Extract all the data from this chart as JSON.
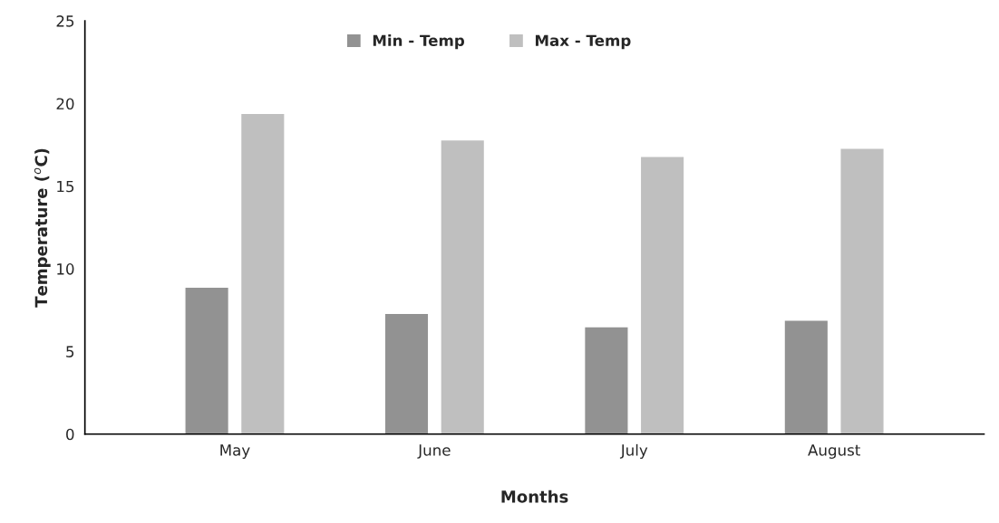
{
  "chart_data": {
    "type": "bar",
    "xlabel": "Months",
    "ylabel": "Temperature ($^{o}$C)",
    "categories": [
      "May",
      "June",
      "July",
      "August"
    ],
    "series": [
      {
        "name": "Min - Temp",
        "color": "#929292",
        "values": [
          8.9,
          7.3,
          6.5,
          6.9
        ]
      },
      {
        "name": "Max - Temp",
        "color": "#bfbfbf",
        "values": [
          19.4,
          17.8,
          16.8,
          17.3
        ]
      }
    ],
    "ylim": [
      0,
      25
    ],
    "yticks": [
      0,
      5,
      10,
      15,
      20,
      25
    ],
    "grid": false,
    "legend": "top"
  }
}
